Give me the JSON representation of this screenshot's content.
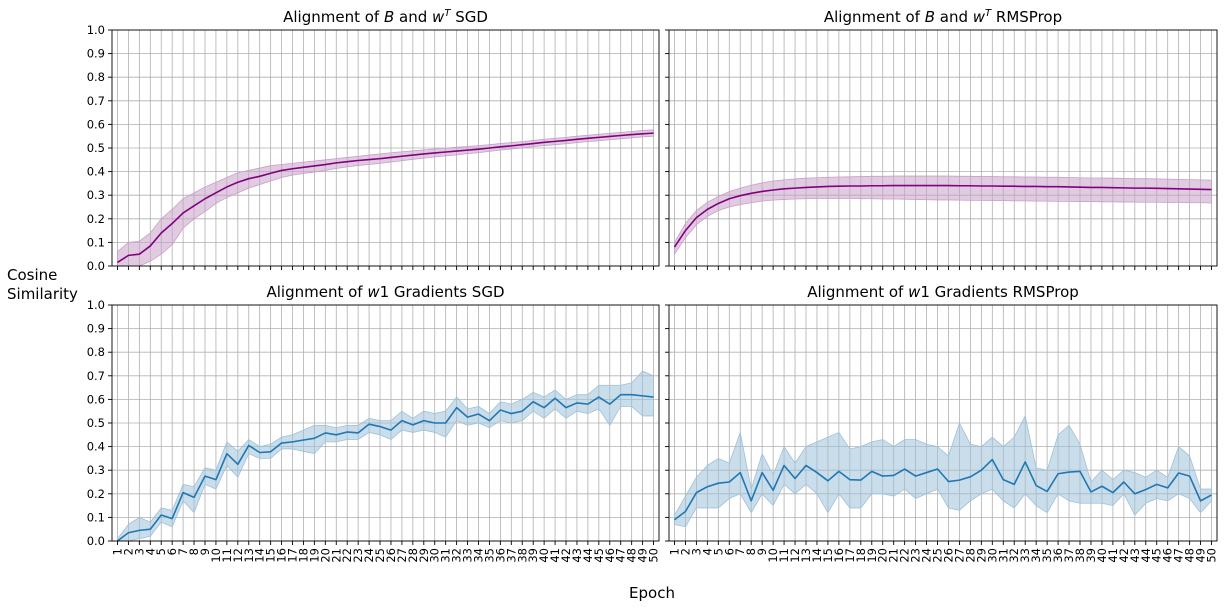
{
  "figure": {
    "ylabel_line1": "Cosine",
    "ylabel_line2": "Similarity",
    "xlabel": "Epoch"
  },
  "colors": {
    "purple": "#800080",
    "purple_band": "#c8a0c8",
    "blue": "#1f77b4",
    "blue_band": "#9ec1d9",
    "grid": "#b0b0b0"
  },
  "chart_data": [
    {
      "type": "line",
      "title": "Alignment of B and w^T SGD",
      "title_parts": [
        "Alignment of ",
        "B",
        " and ",
        "w",
        "T",
        " SGD"
      ],
      "x": [
        1,
        2,
        3,
        4,
        5,
        6,
        7,
        8,
        9,
        10,
        11,
        12,
        13,
        14,
        15,
        16,
        17,
        18,
        19,
        20,
        21,
        22,
        23,
        24,
        25,
        26,
        27,
        28,
        29,
        30,
        31,
        32,
        33,
        34,
        35,
        36,
        37,
        38,
        39,
        40,
        41,
        42,
        43,
        44,
        45,
        46,
        47,
        48,
        49,
        50
      ],
      "ylim": [
        0,
        1.0
      ],
      "grid": true,
      "series": [
        {
          "color": "purple",
          "values": [
            0.015,
            0.045,
            0.05,
            0.085,
            0.14,
            0.18,
            0.225,
            0.255,
            0.285,
            0.31,
            0.335,
            0.355,
            0.37,
            0.38,
            0.393,
            0.405,
            0.412,
            0.418,
            0.424,
            0.43,
            0.437,
            0.442,
            0.447,
            0.451,
            0.455,
            0.46,
            0.465,
            0.47,
            0.475,
            0.479,
            0.483,
            0.487,
            0.491,
            0.495,
            0.5,
            0.505,
            0.509,
            0.514,
            0.519,
            0.524,
            0.528,
            0.532,
            0.537,
            0.541,
            0.545,
            0.549,
            0.553,
            0.557,
            0.56,
            0.563
          ],
          "lower": [
            0.0,
            0.0,
            0.0,
            0.02,
            0.05,
            0.09,
            0.16,
            0.2,
            0.23,
            0.265,
            0.29,
            0.31,
            0.33,
            0.345,
            0.36,
            0.375,
            0.385,
            0.392,
            0.398,
            0.405,
            0.413,
            0.42,
            0.426,
            0.43,
            0.435,
            0.44,
            0.446,
            0.452,
            0.457,
            0.462,
            0.467,
            0.471,
            0.476,
            0.48,
            0.486,
            0.491,
            0.496,
            0.5,
            0.506,
            0.51,
            0.514,
            0.518,
            0.523,
            0.527,
            0.531,
            0.535,
            0.539,
            0.543,
            0.547,
            0.55
          ],
          "upper": [
            0.06,
            0.1,
            0.105,
            0.14,
            0.2,
            0.24,
            0.285,
            0.31,
            0.335,
            0.355,
            0.375,
            0.395,
            0.405,
            0.415,
            0.425,
            0.43,
            0.435,
            0.44,
            0.445,
            0.45,
            0.455,
            0.46,
            0.465,
            0.47,
            0.475,
            0.48,
            0.484,
            0.488,
            0.492,
            0.496,
            0.5,
            0.503,
            0.507,
            0.51,
            0.514,
            0.519,
            0.523,
            0.527,
            0.532,
            0.537,
            0.541,
            0.545,
            0.55,
            0.554,
            0.558,
            0.562,
            0.566,
            0.57,
            0.574,
            0.577
          ]
        }
      ]
    },
    {
      "type": "line",
      "title": "Alignment of B and w^T RMSProp",
      "title_parts": [
        "Alignment of ",
        "B",
        " and ",
        "w",
        "T",
        " RMSProp"
      ],
      "x": [
        1,
        2,
        3,
        4,
        5,
        6,
        7,
        8,
        9,
        10,
        11,
        12,
        13,
        14,
        15,
        16,
        17,
        18,
        19,
        20,
        21,
        22,
        23,
        24,
        25,
        26,
        27,
        28,
        29,
        30,
        31,
        32,
        33,
        34,
        35,
        36,
        37,
        38,
        39,
        40,
        41,
        42,
        43,
        44,
        45,
        46,
        47,
        48,
        49,
        50
      ],
      "ylim": [
        0,
        1.0
      ],
      "grid": true,
      "series": [
        {
          "color": "purple",
          "values": [
            0.08,
            0.15,
            0.205,
            0.24,
            0.265,
            0.285,
            0.298,
            0.308,
            0.316,
            0.322,
            0.327,
            0.33,
            0.333,
            0.335,
            0.337,
            0.338,
            0.339,
            0.339,
            0.34,
            0.34,
            0.341,
            0.341,
            0.341,
            0.341,
            0.341,
            0.341,
            0.34,
            0.34,
            0.339,
            0.339,
            0.338,
            0.338,
            0.337,
            0.337,
            0.336,
            0.336,
            0.335,
            0.334,
            0.333,
            0.333,
            0.332,
            0.331,
            0.33,
            0.33,
            0.329,
            0.328,
            0.327,
            0.326,
            0.325,
            0.324
          ],
          "lower": [
            0.05,
            0.12,
            0.175,
            0.21,
            0.235,
            0.25,
            0.26,
            0.268,
            0.275,
            0.279,
            0.282,
            0.284,
            0.285,
            0.286,
            0.286,
            0.286,
            0.286,
            0.285,
            0.285,
            0.284,
            0.284,
            0.283,
            0.282,
            0.281,
            0.28,
            0.28,
            0.279,
            0.278,
            0.278,
            0.277,
            0.277,
            0.276,
            0.276,
            0.275,
            0.275,
            0.274,
            0.274,
            0.273,
            0.273,
            0.272,
            0.272,
            0.271,
            0.271,
            0.27,
            0.27,
            0.269,
            0.269,
            0.268,
            0.268,
            0.267
          ],
          "upper": [
            0.1,
            0.18,
            0.235,
            0.27,
            0.295,
            0.315,
            0.33,
            0.342,
            0.352,
            0.36,
            0.365,
            0.369,
            0.372,
            0.374,
            0.376,
            0.377,
            0.378,
            0.379,
            0.38,
            0.38,
            0.381,
            0.381,
            0.381,
            0.381,
            0.381,
            0.381,
            0.38,
            0.38,
            0.379,
            0.379,
            0.378,
            0.378,
            0.377,
            0.377,
            0.376,
            0.376,
            0.375,
            0.374,
            0.373,
            0.373,
            0.372,
            0.371,
            0.37,
            0.37,
            0.369,
            0.368,
            0.367,
            0.366,
            0.365,
            0.364
          ]
        }
      ]
    },
    {
      "type": "line",
      "title": "Alignment of w1 Gradients SGD",
      "title_parts": [
        "Alignment of ",
        "w",
        "1 Gradients SGD"
      ],
      "x": [
        1,
        2,
        3,
        4,
        5,
        6,
        7,
        8,
        9,
        10,
        11,
        12,
        13,
        14,
        15,
        16,
        17,
        18,
        19,
        20,
        21,
        22,
        23,
        24,
        25,
        26,
        27,
        28,
        29,
        30,
        31,
        32,
        33,
        34,
        35,
        36,
        37,
        38,
        39,
        40,
        41,
        42,
        43,
        44,
        45,
        46,
        47,
        48,
        49,
        50
      ],
      "ylim": [
        0,
        1.0
      ],
      "grid": true,
      "series": [
        {
          "color": "blue",
          "values": [
            0.0,
            0.035,
            0.045,
            0.05,
            0.11,
            0.095,
            0.205,
            0.185,
            0.275,
            0.26,
            0.37,
            0.325,
            0.405,
            0.375,
            0.378,
            0.415,
            0.42,
            0.428,
            0.435,
            0.458,
            0.45,
            0.462,
            0.458,
            0.495,
            0.485,
            0.47,
            0.51,
            0.492,
            0.51,
            0.5,
            0.5,
            0.565,
            0.525,
            0.538,
            0.51,
            0.555,
            0.54,
            0.55,
            0.59,
            0.565,
            0.605,
            0.565,
            0.585,
            0.58,
            0.61,
            0.58,
            0.62,
            0.62,
            0.615,
            0.61
          ],
          "lower": [
            0.0,
            0.0,
            0.01,
            0.02,
            0.08,
            0.06,
            0.17,
            0.12,
            0.24,
            0.22,
            0.32,
            0.27,
            0.37,
            0.35,
            0.35,
            0.39,
            0.39,
            0.38,
            0.37,
            0.42,
            0.42,
            0.43,
            0.43,
            0.46,
            0.45,
            0.43,
            0.47,
            0.46,
            0.47,
            0.46,
            0.44,
            0.51,
            0.49,
            0.5,
            0.48,
            0.51,
            0.5,
            0.51,
            0.55,
            0.52,
            0.56,
            0.52,
            0.55,
            0.54,
            0.56,
            0.49,
            0.57,
            0.57,
            0.53,
            0.53
          ],
          "upper": [
            0.01,
            0.07,
            0.1,
            0.08,
            0.14,
            0.13,
            0.24,
            0.23,
            0.31,
            0.3,
            0.42,
            0.38,
            0.43,
            0.4,
            0.41,
            0.44,
            0.45,
            0.47,
            0.49,
            0.49,
            0.48,
            0.49,
            0.49,
            0.52,
            0.51,
            0.51,
            0.55,
            0.52,
            0.55,
            0.54,
            0.55,
            0.61,
            0.56,
            0.57,
            0.54,
            0.59,
            0.58,
            0.6,
            0.63,
            0.61,
            0.64,
            0.6,
            0.62,
            0.62,
            0.66,
            0.66,
            0.66,
            0.67,
            0.72,
            0.7
          ]
        }
      ]
    },
    {
      "type": "line",
      "title": "Alignment of w1 Gradients RMSProp",
      "title_parts": [
        "Alignment of ",
        "w",
        "1 Gradients RMSProp"
      ],
      "x": [
        1,
        2,
        3,
        4,
        5,
        6,
        7,
        8,
        9,
        10,
        11,
        12,
        13,
        14,
        15,
        16,
        17,
        18,
        19,
        20,
        21,
        22,
        23,
        24,
        25,
        26,
        27,
        28,
        29,
        30,
        31,
        32,
        33,
        34,
        35,
        36,
        37,
        38,
        39,
        40,
        41,
        42,
        43,
        44,
        45,
        46,
        47,
        48,
        49,
        50
      ],
      "ylim": [
        0,
        1.0
      ],
      "grid": true,
      "series": [
        {
          "color": "blue",
          "values": [
            0.09,
            0.125,
            0.205,
            0.23,
            0.245,
            0.25,
            0.29,
            0.17,
            0.29,
            0.215,
            0.32,
            0.265,
            0.32,
            0.29,
            0.255,
            0.295,
            0.26,
            0.258,
            0.295,
            0.275,
            0.278,
            0.305,
            0.275,
            0.29,
            0.305,
            0.252,
            0.258,
            0.272,
            0.3,
            0.345,
            0.26,
            0.24,
            0.335,
            0.235,
            0.21,
            0.285,
            0.292,
            0.295,
            0.208,
            0.232,
            0.205,
            0.25,
            0.2,
            0.218,
            0.24,
            0.225,
            0.288,
            0.275,
            0.17,
            0.195
          ],
          "lower": [
            0.07,
            0.06,
            0.14,
            0.14,
            0.14,
            0.18,
            0.2,
            0.12,
            0.2,
            0.15,
            0.24,
            0.2,
            0.24,
            0.2,
            0.12,
            0.2,
            0.14,
            0.14,
            0.2,
            0.2,
            0.19,
            0.22,
            0.18,
            0.2,
            0.22,
            0.14,
            0.13,
            0.17,
            0.2,
            0.22,
            0.17,
            0.14,
            0.2,
            0.15,
            0.12,
            0.2,
            0.17,
            0.16,
            0.16,
            0.16,
            0.15,
            0.2,
            0.11,
            0.16,
            0.18,
            0.17,
            0.2,
            0.18,
            0.12,
            0.17
          ],
          "upper": [
            0.11,
            0.19,
            0.27,
            0.32,
            0.35,
            0.33,
            0.46,
            0.22,
            0.37,
            0.28,
            0.4,
            0.33,
            0.4,
            0.42,
            0.44,
            0.46,
            0.39,
            0.4,
            0.42,
            0.43,
            0.4,
            0.43,
            0.43,
            0.41,
            0.4,
            0.36,
            0.5,
            0.41,
            0.4,
            0.44,
            0.4,
            0.44,
            0.53,
            0.31,
            0.3,
            0.45,
            0.49,
            0.41,
            0.25,
            0.3,
            0.26,
            0.3,
            0.29,
            0.27,
            0.3,
            0.27,
            0.4,
            0.36,
            0.22,
            0.22
          ]
        }
      ]
    }
  ]
}
